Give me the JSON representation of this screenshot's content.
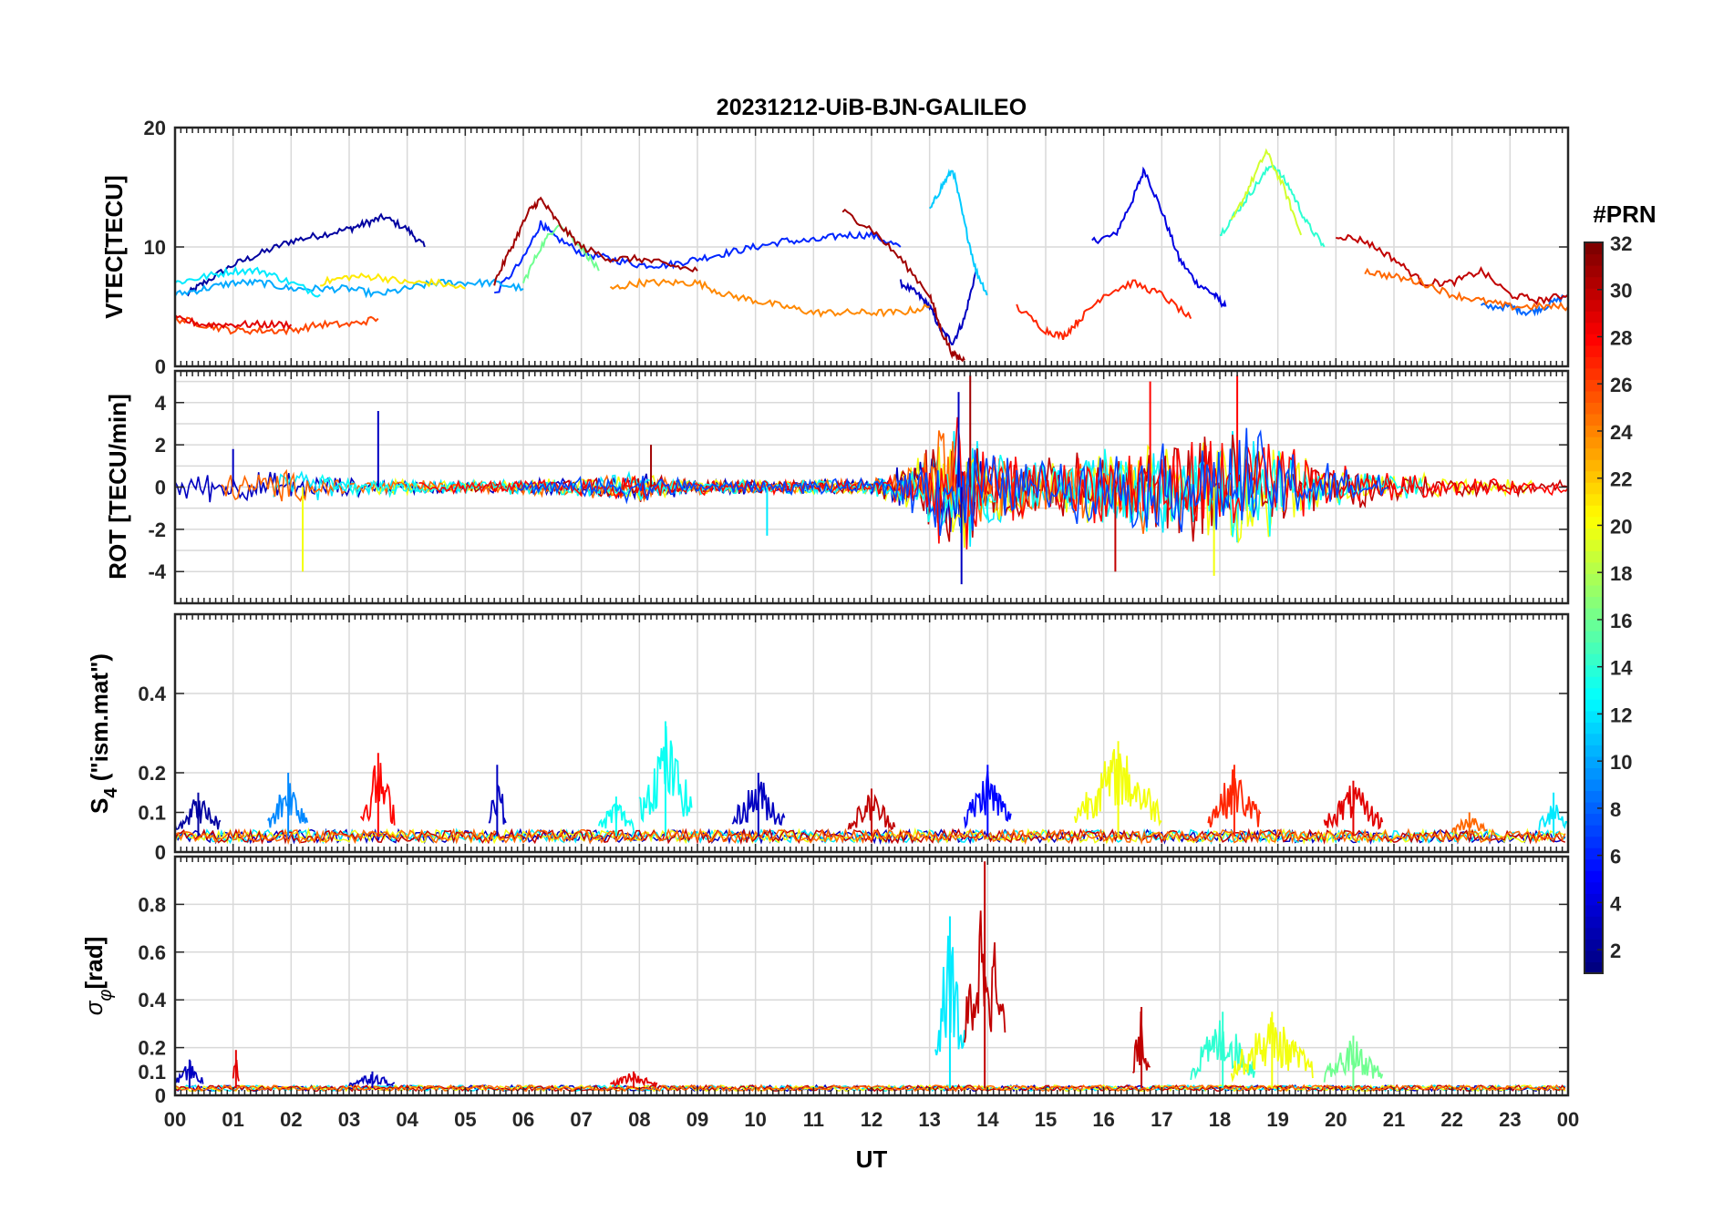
{
  "chart_data": {
    "type": "line",
    "title": "20231212-UiB-BJN-GALILEO",
    "xlabel": "UT",
    "x_tick_labels": [
      "00",
      "01",
      "02",
      "03",
      "04",
      "05",
      "06",
      "07",
      "08",
      "09",
      "10",
      "11",
      "12",
      "13",
      "14",
      "15",
      "16",
      "17",
      "18",
      "19",
      "20",
      "21",
      "22",
      "23",
      "00"
    ],
    "xlim_hours": [
      0,
      24
    ],
    "grid": true,
    "colorbar": {
      "title": "#PRN",
      "colormap": "jet",
      "range": [
        1,
        32
      ],
      "tick_labels": [
        "2",
        "4",
        "6",
        "8",
        "10",
        "12",
        "14",
        "16",
        "18",
        "20",
        "22",
        "24",
        "26",
        "28",
        "30",
        "32"
      ],
      "placement": "right"
    },
    "panels": [
      {
        "ylabel": "VTEC[TECU]",
        "ylim": [
          0,
          20
        ],
        "y_tick_labels": [
          "0",
          "10",
          "20"
        ],
        "y_ticks": [
          0,
          10,
          20
        ],
        "grid_y": [
          0,
          10,
          20
        ],
        "series": [
          {
            "prn": 2,
            "x": [
              0.2,
              0.5,
              1.0,
              1.5,
              2.0,
              2.5,
              3.0,
              3.3,
              3.6,
              4.0,
              4.3
            ],
            "y": [
              6,
              7,
              8.5,
              9.5,
              10.5,
              11,
              11.5,
              12,
              12.5,
              11.5,
              10
            ]
          },
          {
            "prn": 4,
            "x": [
              15.8,
              16.2,
              16.5,
              16.7,
              17.0,
              17.3,
              17.6,
              17.9,
              18.1
            ],
            "y": [
              10.5,
              11,
              14,
              16.5,
              13,
              9,
              7,
              6,
              5
            ]
          },
          {
            "prn": 3,
            "x": [
              12.5,
              12.8,
              13.0,
              13.2,
              13.4,
              13.6,
              13.8
            ],
            "y": [
              7,
              6,
              5,
              3,
              2,
              4,
              8
            ]
          },
          {
            "prn": 6,
            "x": [
              5.5,
              6.0,
              6.3,
              6.5,
              7.0,
              7.5,
              8.0,
              8.5,
              9.0,
              9.5,
              10.0,
              10.5,
              11.0,
              11.5,
              12.0,
              12.5
            ],
            "y": [
              6,
              9,
              12,
              11,
              9.5,
              9,
              8.5,
              8.5,
              9,
              9.5,
              10,
              10.5,
              10.5,
              11,
              11,
              10
            ]
          },
          {
            "prn": 8,
            "x": [
              22.5,
              23.0,
              23.3,
              23.6,
              24.0
            ],
            "y": [
              5,
              5,
              4.5,
              5,
              6
            ]
          },
          {
            "prn": 10,
            "x": [
              0.0,
              0.5,
              1.0,
              1.5,
              2.0,
              2.5,
              3.0,
              3.5,
              4.0,
              4.5,
              5.0,
              5.5,
              6.0
            ],
            "y": [
              6,
              6.5,
              7,
              7,
              6.5,
              6.5,
              6.5,
              6,
              6.5,
              7,
              7,
              7,
              6.5
            ]
          },
          {
            "prn": 11,
            "x": [
              13.0,
              13.2,
              13.4,
              13.6,
              13.8,
              14.0
            ],
            "y": [
              13,
              15,
              16.5,
              12,
              8,
              6
            ]
          },
          {
            "prn": 12,
            "x": [
              0.0,
              0.5,
              1.0,
              1.5,
              2.0,
              2.5
            ],
            "y": [
              7,
              7.5,
              8,
              8,
              7,
              6
            ]
          },
          {
            "prn": 14,
            "x": [
              18.0,
              18.3,
              18.6,
              18.9,
              19.2,
              19.5,
              19.8
            ],
            "y": [
              11,
              13,
              15,
              17,
              15,
              12,
              10
            ]
          },
          {
            "prn": 16,
            "x": [
              6.0,
              6.3,
              6.6,
              7.0,
              7.3
            ],
            "y": [
              7,
              10,
              12,
              10,
              8
            ]
          },
          {
            "prn": 19,
            "x": [
              18.2,
              18.5,
              18.8,
              19.1,
              19.4
            ],
            "y": [
              12,
              15,
              18,
              15,
              11
            ]
          },
          {
            "prn": 21,
            "x": [
              2.5,
              3.0,
              3.5,
              4.0,
              4.5,
              5.0
            ],
            "y": [
              7,
              7.5,
              7.5,
              7,
              7,
              6.5
            ]
          },
          {
            "prn": 24,
            "x": [
              7.5,
              8.0,
              8.5,
              9.0,
              9.5,
              10.0,
              10.5,
              11.0,
              11.5,
              12.0,
              12.5,
              13.0
            ],
            "y": [
              6.5,
              7,
              7,
              7,
              6,
              5.5,
              5,
              4.5,
              4.5,
              4.5,
              4.5,
              5
            ]
          },
          {
            "prn": 26,
            "x": [
              0.0,
              0.5,
              1.0,
              1.5,
              2.0,
              2.5,
              3.0,
              3.5
            ],
            "y": [
              4,
              3.5,
              3,
              3,
              3,
              3.5,
              3.5,
              4
            ]
          },
          {
            "prn": 27,
            "x": [
              14.5,
              15.0,
              15.3,
              15.6,
              16.0,
              16.5,
              17.0,
              17.5
            ],
            "y": [
              5,
              3,
              2.5,
              4,
              6,
              7,
              6,
              4
            ]
          },
          {
            "prn": 29,
            "x": [
              0.0,
              0.5,
              1.0,
              1.5,
              2.0
            ],
            "y": [
              4,
              3.5,
              3.5,
              3.5,
              3.5
            ]
          },
          {
            "prn": 31,
            "x": [
              5.5,
              5.8,
              6.1,
              6.3,
              6.6,
              7.0,
              7.5,
              8.0,
              8.5,
              9.0
            ],
            "y": [
              7,
              10,
              13,
              14,
              12,
              10,
              9,
              9,
              8.5,
              8
            ]
          },
          {
            "prn": 31,
            "x": [
              11.5,
              12.0,
              12.5,
              13.0,
              13.2,
              13.4,
              13.6
            ],
            "y": [
              13,
              11.5,
              9,
              6,
              3,
              1,
              0.5
            ]
          },
          {
            "prn": 30,
            "x": [
              20.0,
              20.5,
              21.0,
              21.5,
              22.0,
              22.5,
              23.0,
              23.5,
              24.0
            ],
            "y": [
              11,
              10.5,
              9,
              7,
              7,
              8,
              6,
              5.5,
              6
            ]
          },
          {
            "prn": 25,
            "x": [
              20.5,
              21.0,
              21.5,
              22.0,
              22.5,
              23.0,
              23.5,
              24.0
            ],
            "y": [
              8,
              7.5,
              7,
              6,
              5.5,
              5,
              5,
              5
            ]
          }
        ]
      },
      {
        "ylabel": "ROT [TECU/min]",
        "ylim": [
          -5.5,
          5.5
        ],
        "y_tick_labels": [
          "-4",
          "-2",
          "0",
          "2",
          "4"
        ],
        "y_ticks": [
          -4,
          -2,
          0,
          2,
          4
        ],
        "grid_y": [
          -4,
          -3,
          -2,
          -1,
          0,
          1,
          2,
          3,
          4,
          5
        ],
        "activity_envelope": {
          "x": [
            0,
            1,
            2,
            3,
            4,
            5,
            6,
            7,
            8,
            9,
            10,
            11,
            12,
            12.8,
            13.2,
            13.6,
            14,
            15,
            16,
            17,
            18,
            18.5,
            19,
            20,
            21,
            22,
            23,
            24
          ],
          "amplitude": [
            0.8,
            0.8,
            0.9,
            0.5,
            0.4,
            0.3,
            0.4,
            0.5,
            0.8,
            0.4,
            0.4,
            0.4,
            0.4,
            1.5,
            3.0,
            3.5,
            2.0,
            1.5,
            2.0,
            2.5,
            3.0,
            3.5,
            2.5,
            1.2,
            0.8,
            0.5,
            0.4,
            0.4
          ]
        },
        "spikes": [
          {
            "x": 2.2,
            "y": -4.0,
            "prn": 20
          },
          {
            "x": 3.5,
            "y": 3.6,
            "prn": 3
          },
          {
            "x": 13.5,
            "y": 4.5,
            "prn": 3
          },
          {
            "x": 13.55,
            "y": -4.6,
            "prn": 3
          },
          {
            "x": 13.7,
            "y": 5.3,
            "prn": 31
          },
          {
            "x": 16.2,
            "y": -4.0,
            "prn": 30
          },
          {
            "x": 17.9,
            "y": -4.2,
            "prn": 20
          },
          {
            "x": 18.3,
            "y": 5.3,
            "prn": 28
          },
          {
            "x": 16.8,
            "y": 5.0,
            "prn": 28
          },
          {
            "x": 8.2,
            "y": 2.0,
            "prn": 31
          },
          {
            "x": 10.2,
            "y": -2.3,
            "prn": 12
          },
          {
            "x": 1.0,
            "y": 1.8,
            "prn": 3
          }
        ]
      },
      {
        "ylabel": "S_4 (\"ism.mat\")",
        "ylim": [
          0,
          0.6
        ],
        "y_tick_labels": [
          "0",
          "0.1",
          "0.2",
          "0.4"
        ],
        "y_ticks": [
          0,
          0.1,
          0.2,
          0.4
        ],
        "grid_y": [
          0,
          0.1,
          0.2,
          0.4
        ],
        "baseline": 0.04,
        "bursts": [
          {
            "x0": 0.0,
            "x1": 0.8,
            "peak": 0.15,
            "prn": 2
          },
          {
            "x0": 1.6,
            "x1": 2.3,
            "peak": 0.2,
            "prn": 9
          },
          {
            "x0": 3.2,
            "x1": 3.8,
            "peak": 0.25,
            "prn": 28
          },
          {
            "x0": 5.4,
            "x1": 5.7,
            "peak": 0.22,
            "prn": 3
          },
          {
            "x0": 7.3,
            "x1": 7.9,
            "peak": 0.14,
            "prn": 13
          },
          {
            "x0": 8.0,
            "x1": 8.9,
            "peak": 0.33,
            "prn": 13
          },
          {
            "x0": 9.6,
            "x1": 10.5,
            "peak": 0.2,
            "prn": 3
          },
          {
            "x0": 11.6,
            "x1": 12.4,
            "peak": 0.16,
            "prn": 30
          },
          {
            "x0": 13.6,
            "x1": 14.4,
            "peak": 0.22,
            "prn": 5
          },
          {
            "x0": 15.5,
            "x1": 17.0,
            "peak": 0.28,
            "prn": 20
          },
          {
            "x0": 17.8,
            "x1": 18.7,
            "peak": 0.22,
            "prn": 27
          },
          {
            "x0": 19.8,
            "x1": 20.8,
            "peak": 0.18,
            "prn": 29
          },
          {
            "x0": 22.0,
            "x1": 22.6,
            "peak": 0.1,
            "prn": 25
          },
          {
            "x0": 23.5,
            "x1": 24.0,
            "peak": 0.15,
            "prn": 12
          }
        ]
      },
      {
        "ylabel": "σ_φ[rad]",
        "ylim": [
          0,
          1.0
        ],
        "y_tick_labels": [
          "0",
          "0.1",
          "0.2",
          "0.4",
          "0.6",
          "0.8"
        ],
        "y_ticks": [
          0,
          0.1,
          0.2,
          0.4,
          0.6,
          0.8
        ],
        "grid_y": [
          0,
          0.1,
          0.2,
          0.4,
          0.6,
          0.8
        ],
        "baseline": 0.03,
        "bursts": [
          {
            "x0": 0.0,
            "x1": 0.5,
            "peak": 0.15,
            "prn": 3
          },
          {
            "x0": 1.0,
            "x1": 1.1,
            "peak": 0.19,
            "prn": 29
          },
          {
            "x0": 3.0,
            "x1": 3.8,
            "peak": 0.1,
            "prn": 3
          },
          {
            "x0": 7.5,
            "x1": 8.3,
            "peak": 0.1,
            "prn": 29
          },
          {
            "x0": 13.1,
            "x1": 13.6,
            "peak": 0.75,
            "prn": 12
          },
          {
            "x0": 13.6,
            "x1": 14.3,
            "peak": 0.98,
            "prn": 30
          },
          {
            "x0": 16.5,
            "x1": 16.8,
            "peak": 0.37,
            "prn": 30
          },
          {
            "x0": 17.5,
            "x1": 18.6,
            "peak": 0.35,
            "prn": 14
          },
          {
            "x0": 18.2,
            "x1": 19.6,
            "peak": 0.35,
            "prn": 20
          },
          {
            "x0": 19.8,
            "x1": 20.8,
            "peak": 0.25,
            "prn": 16
          }
        ]
      }
    ]
  }
}
